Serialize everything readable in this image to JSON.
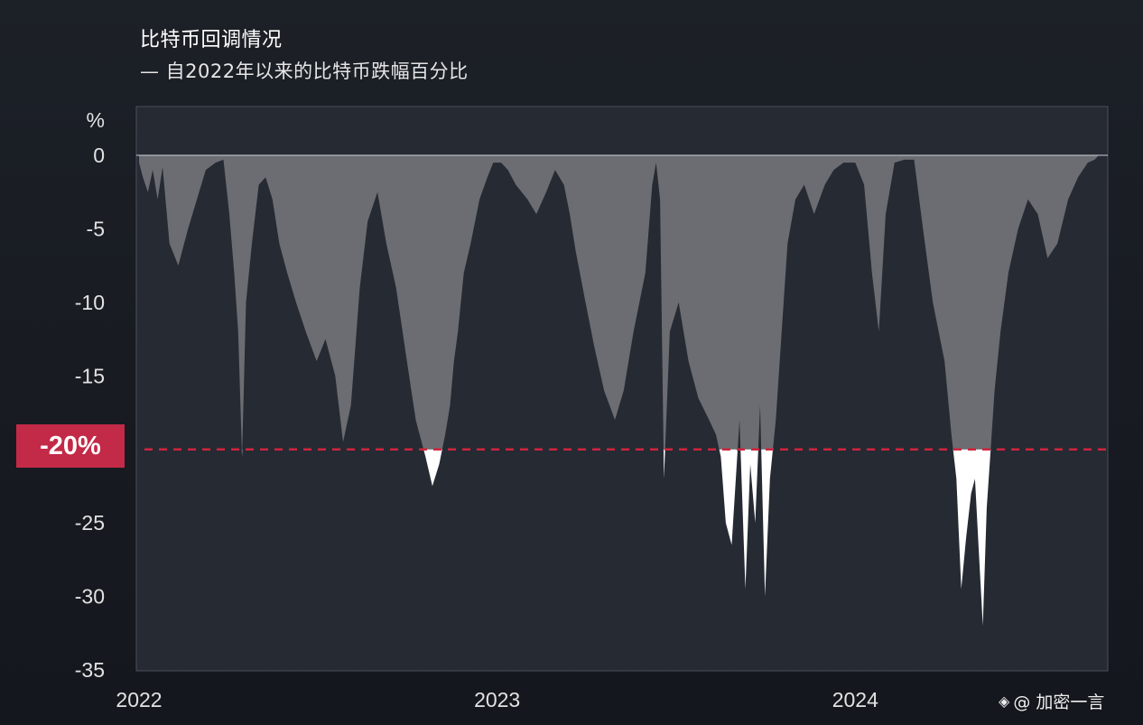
{
  "header": {
    "title": "比特币回调情况",
    "subtitle": "— 自2022年以来的比特币跌幅百分比"
  },
  "watermark": {
    "text": "@ 加密一言",
    "icon": "binance-logo-icon"
  },
  "threshold_badge": {
    "label": "-20%"
  },
  "colors": {
    "background": "#1a1d23",
    "plot_background": "#262a33",
    "drawdown_fill": "#6b6d72",
    "below_threshold_fill": "#ffffff",
    "threshold_line": "#d0243e",
    "badge": "#c22a47"
  },
  "chart_data": {
    "type": "area",
    "title": "比特币回调情况",
    "subtitle": "— 自2022年以来的比特币跌幅百分比",
    "ylabel": "%",
    "ylim": [
      -35,
      0
    ],
    "yticks": [
      0,
      -5,
      -10,
      -15,
      -20,
      -25,
      -30,
      -35
    ],
    "ytick_labels": [
      "0",
      "-5",
      "-10",
      "-15",
      "",
      "-25",
      "-30",
      "-35"
    ],
    "xlim": [
      "2022-01-01",
      "2024-09-30"
    ],
    "xticks": [
      "2022",
      "2023",
      "2024"
    ],
    "threshold": -20,
    "threshold_label": "-20%",
    "grid": false,
    "x": [
      "2022-01-01",
      "2022-01-05",
      "2022-01-10",
      "2022-01-15",
      "2022-01-20",
      "2022-01-25",
      "2022-02-01",
      "2022-02-10",
      "2022-02-20",
      "2022-03-01",
      "2022-03-10",
      "2022-03-20",
      "2022-03-28",
      "2022-04-03",
      "2022-04-08",
      "2022-04-12",
      "2022-04-16",
      "2022-04-20",
      "2022-04-26",
      "2022-05-03",
      "2022-05-10",
      "2022-05-17",
      "2022-05-24",
      "2022-06-01",
      "2022-06-10",
      "2022-06-20",
      "2022-07-01",
      "2022-07-10",
      "2022-07-20",
      "2022-07-28",
      "2022-08-05",
      "2022-08-14",
      "2022-08-22",
      "2022-09-01",
      "2022-09-10",
      "2022-09-20",
      "2022-10-01",
      "2022-10-10",
      "2022-10-20",
      "2022-10-27",
      "2022-11-03",
      "2022-11-09",
      "2022-11-14",
      "2022-11-18",
      "2022-11-22",
      "2022-11-28",
      "2022-12-05",
      "2022-12-14",
      "2022-12-22",
      "2022-12-28",
      "2023-01-05",
      "2023-01-12",
      "2023-01-20",
      "2023-02-01",
      "2023-02-10",
      "2023-02-20",
      "2023-03-01",
      "2023-03-10",
      "2023-03-16",
      "2023-03-22",
      "2023-04-01",
      "2023-04-10",
      "2023-04-20",
      "2023-05-01",
      "2023-05-10",
      "2023-05-20",
      "2023-06-01",
      "2023-06-08",
      "2023-06-12",
      "2023-06-16",
      "2023-06-20",
      "2023-06-26",
      "2023-07-05",
      "2023-07-15",
      "2023-07-25",
      "2023-08-05",
      "2023-08-12",
      "2023-08-17",
      "2023-08-22",
      "2023-08-28",
      "2023-09-05",
      "2023-09-11",
      "2023-09-16",
      "2023-09-21",
      "2023-09-26",
      "2023-10-01",
      "2023-10-06",
      "2023-10-12",
      "2023-10-18",
      "2023-10-24",
      "2023-11-01",
      "2023-11-10",
      "2023-11-20",
      "2023-12-01",
      "2023-12-10",
      "2023-12-20",
      "2024-01-01",
      "2024-01-10",
      "2024-01-18",
      "2024-01-25",
      "2024-02-01",
      "2024-02-10",
      "2024-02-20",
      "2024-03-01",
      "2024-03-10",
      "2024-03-20",
      "2024-04-01",
      "2024-04-08",
      "2024-04-13",
      "2024-04-18",
      "2024-04-23",
      "2024-04-28",
      "2024-05-02",
      "2024-05-06",
      "2024-05-10",
      "2024-05-14",
      "2024-05-18",
      "2024-05-22",
      "2024-05-28",
      "2024-06-05",
      "2024-06-15",
      "2024-06-25",
      "2024-07-05",
      "2024-07-15",
      "2024-07-25",
      "2024-08-05",
      "2024-08-15",
      "2024-08-25",
      "2024-09-01",
      "2024-09-05"
    ],
    "series": [
      {
        "values": [
          -0.5,
          -1.5,
          -2.5,
          -1.0,
          -3.0,
          -0.8,
          -6.0,
          -7.5,
          -5.0,
          -3.0,
          -1.0,
          -0.5,
          -0.3,
          -4.0,
          -8.0,
          -12.0,
          -20.5,
          -10.0,
          -6.0,
          -2.0,
          -1.5,
          -3.0,
          -6.0,
          -8.0,
          -10.0,
          -12.0,
          -14.0,
          -12.5,
          -15.0,
          -19.5,
          -17.0,
          -9.0,
          -4.5,
          -2.5,
          -6.0,
          -9.0,
          -14.0,
          -18.0,
          -20.5,
          -22.5,
          -21.0,
          -19.0,
          -17.0,
          -14.0,
          -12.0,
          -8.0,
          -6.0,
          -3.0,
          -1.5,
          -0.5,
          -0.5,
          -1.0,
          -2.0,
          -3.0,
          -4.0,
          -2.5,
          -1.0,
          -2.0,
          -4.0,
          -6.5,
          -10.0,
          -13.0,
          -16.0,
          -18.0,
          -16.0,
          -12.0,
          -8.0,
          -2.0,
          -0.5,
          -3.0,
          -22.0,
          -12.0,
          -10.0,
          -14.0,
          -16.5,
          -18.0,
          -19.0,
          -20.5,
          -25.0,
          -26.5,
          -18.0,
          -29.5,
          -21.0,
          -25.0,
          -17.0,
          -30.0,
          -22.0,
          -18.0,
          -12.0,
          -6.0,
          -3.0,
          -2.0,
          -4.0,
          -2.0,
          -1.0,
          -0.5,
          -0.5,
          -2.0,
          -8.0,
          -12.0,
          -4.0,
          -0.5,
          -0.3,
          -0.3,
          -5.0,
          -10.0,
          -14.0,
          -19.0,
          -22.0,
          -29.5,
          -26.0,
          -23.0,
          -22.0,
          -27.0,
          -32.0,
          -24.0,
          -20.0,
          -16.0,
          -12.0,
          -8.0,
          -5.0,
          -3.0,
          -4.0,
          -7.0,
          -6.0,
          -3.0,
          -1.5,
          -0.5,
          -0.3,
          0.0
        ]
      }
    ]
  }
}
